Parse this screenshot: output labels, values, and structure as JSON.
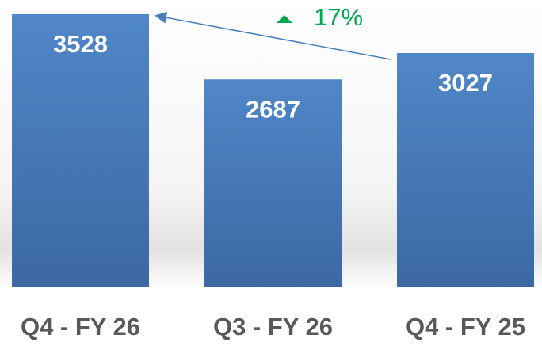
{
  "chart_data": {
    "type": "bar",
    "categories": [
      "Q4 - FY 26",
      "Q3 - FY 26",
      "Q4 - FY 25"
    ],
    "values": [
      3528,
      2687,
      3027
    ],
    "color": "#4f81bd",
    "annotation": "17%",
    "annotation_color": "#00a550"
  }
}
